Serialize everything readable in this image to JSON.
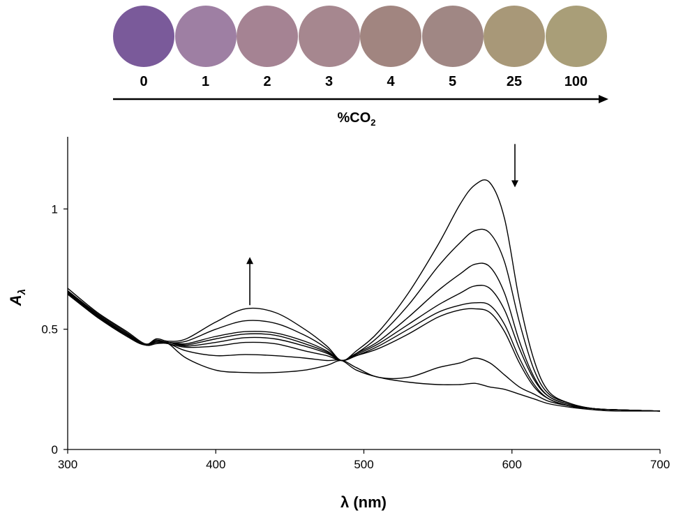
{
  "swatches": {
    "axis_label": "%CO",
    "axis_label_sub": "2",
    "items": [
      {
        "label": "0",
        "color": "#7a5a9a"
      },
      {
        "label": "1",
        "color": "#9e7fa3"
      },
      {
        "label": "2",
        "color": "#a58393"
      },
      {
        "label": "3",
        "color": "#a6878f"
      },
      {
        "label": "4",
        "color": "#a18580"
      },
      {
        "label": "5",
        "color": "#a08784"
      },
      {
        "label": "25",
        "color": "#a89878"
      },
      {
        "label": "100",
        "color": "#a99e78"
      }
    ]
  },
  "chart_data": {
    "type": "line",
    "title": "",
    "xlabel": "λ (nm)",
    "ylabel": "A",
    "ylabel_sub": "λ",
    "xlim": [
      300,
      700
    ],
    "ylim": [
      0,
      1.3
    ],
    "xticks": [
      300,
      400,
      500,
      600,
      700
    ],
    "yticks": [
      0,
      0.5,
      1
    ],
    "ytick_labels": [
      "0",
      "0.5",
      "1"
    ],
    "grid": false,
    "line_color": "#000000",
    "annotations": [
      {
        "type": "arrow-up",
        "x": 423,
        "y_from": 0.6,
        "y_to": 0.8
      },
      {
        "type": "arrow-down",
        "x": 602,
        "y_from": 1.27,
        "y_to": 1.09
      }
    ],
    "x": [
      300,
      320,
      340,
      352,
      360,
      368,
      380,
      400,
      420,
      440,
      460,
      475,
      485,
      495,
      510,
      530,
      550,
      565,
      575,
      585,
      595,
      605,
      615,
      625,
      640,
      655,
      670,
      700
    ],
    "series": [
      {
        "values": [
          0.67,
          0.57,
          0.49,
          0.44,
          0.45,
          0.44,
          0.38,
          0.33,
          0.32,
          0.32,
          0.33,
          0.35,
          0.37,
          0.34,
          0.3,
          0.3,
          0.34,
          0.36,
          0.38,
          0.36,
          0.31,
          0.26,
          0.23,
          0.2,
          0.18,
          0.17,
          0.165,
          0.16
        ]
      },
      {
        "values": [
          0.66,
          0.565,
          0.485,
          0.435,
          0.44,
          0.44,
          0.41,
          0.39,
          0.395,
          0.39,
          0.38,
          0.37,
          0.37,
          0.33,
          0.3,
          0.28,
          0.27,
          0.27,
          0.275,
          0.26,
          0.25,
          0.23,
          0.21,
          0.19,
          0.175,
          0.165,
          0.16,
          0.16
        ]
      },
      {
        "values": [
          0.66,
          0.56,
          0.48,
          0.435,
          0.445,
          0.44,
          0.425,
          0.43,
          0.445,
          0.44,
          0.41,
          0.39,
          0.37,
          0.39,
          0.42,
          0.48,
          0.55,
          0.58,
          0.585,
          0.57,
          0.49,
          0.36,
          0.26,
          0.21,
          0.18,
          0.17,
          0.165,
          0.16
        ]
      },
      {
        "values": [
          0.655,
          0.56,
          0.48,
          0.435,
          0.445,
          0.445,
          0.43,
          0.445,
          0.465,
          0.46,
          0.43,
          0.4,
          0.37,
          0.39,
          0.43,
          0.5,
          0.57,
          0.6,
          0.61,
          0.6,
          0.52,
          0.38,
          0.27,
          0.21,
          0.18,
          0.17,
          0.165,
          0.16
        ]
      },
      {
        "values": [
          0.655,
          0.555,
          0.48,
          0.435,
          0.45,
          0.445,
          0.435,
          0.46,
          0.48,
          0.475,
          0.44,
          0.405,
          0.37,
          0.395,
          0.44,
          0.52,
          0.6,
          0.65,
          0.68,
          0.67,
          0.58,
          0.42,
          0.29,
          0.22,
          0.185,
          0.17,
          0.165,
          0.16
        ]
      },
      {
        "values": [
          0.65,
          0.555,
          0.475,
          0.435,
          0.45,
          0.445,
          0.44,
          0.47,
          0.49,
          0.485,
          0.45,
          0.41,
          0.37,
          0.4,
          0.45,
          0.55,
          0.66,
          0.73,
          0.77,
          0.76,
          0.65,
          0.45,
          0.3,
          0.22,
          0.185,
          0.17,
          0.165,
          0.16
        ]
      },
      {
        "values": [
          0.65,
          0.55,
          0.475,
          0.435,
          0.455,
          0.445,
          0.45,
          0.5,
          0.535,
          0.525,
          0.475,
          0.42,
          0.37,
          0.4,
          0.47,
          0.6,
          0.76,
          0.86,
          0.91,
          0.9,
          0.78,
          0.53,
          0.33,
          0.23,
          0.19,
          0.17,
          0.165,
          0.16
        ]
      },
      {
        "values": [
          0.645,
          0.55,
          0.47,
          0.435,
          0.46,
          0.45,
          0.46,
          0.53,
          0.585,
          0.57,
          0.5,
          0.43,
          0.37,
          0.41,
          0.49,
          0.65,
          0.85,
          1.02,
          1.1,
          1.11,
          0.96,
          0.62,
          0.37,
          0.24,
          0.19,
          0.17,
          0.165,
          0.16
        ]
      }
    ]
  }
}
